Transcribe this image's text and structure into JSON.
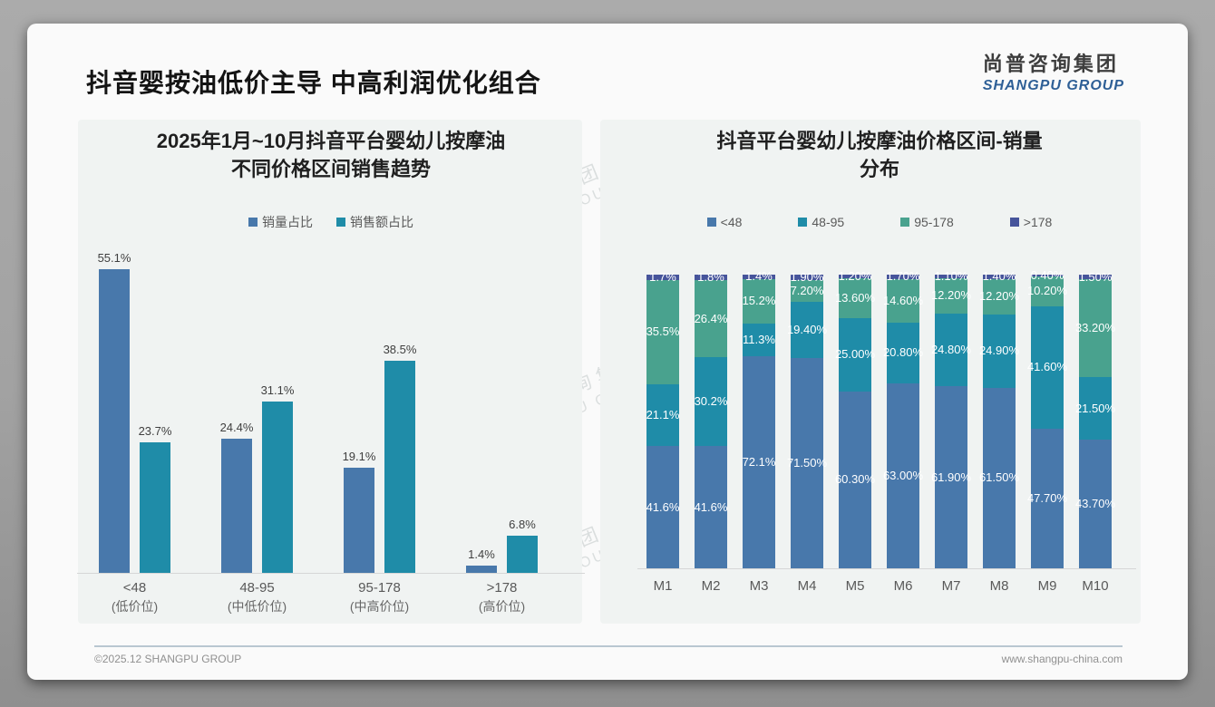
{
  "page": {
    "title": "抖音婴按油低价主导 中高利润优化组合"
  },
  "logo": {
    "cn": "尚普咨询集团",
    "en": "SHANGPU GROUP"
  },
  "watermark": {
    "cn": "尚普咨询集团",
    "en": "SHANGPU GROUP"
  },
  "footer": {
    "left": "©2025.12 SHANGPU GROUP",
    "right": "www.shangpu-china.com"
  },
  "colors": {
    "blue": "#4878ab",
    "teal": "#1f8ca8",
    "green": "#49a28e",
    "navy": "#46549b",
    "axis": "#d6d6d6"
  },
  "chart_data": [
    {
      "type": "bar",
      "stacked": false,
      "title": "2025年1月~10月抖音平台婴幼儿按摩油不同价格区间销售趋势",
      "title_lines": [
        "2025年1月~10月抖音平台婴幼儿按摩油",
        "不同价格区间销售趋势"
      ],
      "xlabel": "",
      "ylabel": "",
      "ylim": [
        0,
        60
      ],
      "grid": false,
      "legend_position": "top",
      "categories": [
        "<48",
        "48-95",
        "95-178",
        ">178"
      ],
      "category_sublabels": [
        "(低价位)",
        "(中低价位)",
        "(中高价位)",
        "(高价位)"
      ],
      "series": [
        {
          "name": "销量占比",
          "color_key": "blue",
          "values": [
            55.1,
            24.4,
            19.1,
            1.4
          ],
          "labels": [
            "55.1%",
            "24.4%",
            "19.1%",
            "1.4%"
          ]
        },
        {
          "name": "销售额占比",
          "color_key": "teal",
          "values": [
            23.7,
            31.1,
            38.5,
            6.8
          ],
          "labels": [
            "23.7%",
            "31.1%",
            "38.5%",
            "6.8%"
          ]
        }
      ]
    },
    {
      "type": "bar",
      "stacked": true,
      "title": "抖音平台婴幼儿按摩油价格区间-销量分布",
      "title_lines": [
        "抖音平台婴幼儿按摩油价格区间-销量",
        "分布"
      ],
      "xlabel": "",
      "ylabel": "",
      "ylim": [
        0,
        100
      ],
      "grid": false,
      "legend_position": "top",
      "categories": [
        "M1",
        "M2",
        "M3",
        "M4",
        "M5",
        "M6",
        "M7",
        "M8",
        "M9",
        "M10"
      ],
      "series": [
        {
          "name": "<48",
          "color_key": "blue",
          "values": [
            41.6,
            41.6,
            72.1,
            71.5,
            60.3,
            63.0,
            61.9,
            61.5,
            47.7,
            43.7
          ],
          "labels": [
            "41.6%",
            "41.6%",
            "72.1%",
            "71.50%",
            "60.30%",
            "63.00%",
            "61.90%",
            "61.50%",
            "47.70%",
            "43.70%"
          ]
        },
        {
          "name": "48-95",
          "color_key": "teal",
          "values": [
            21.1,
            30.2,
            11.3,
            19.4,
            25.0,
            20.8,
            24.8,
            24.9,
            41.6,
            21.5
          ],
          "labels": [
            "21.1%",
            "30.2%",
            "11.3%",
            "19.40%",
            "25.00%",
            "20.80%",
            "24.80%",
            "24.90%",
            "41.60%",
            "21.50%"
          ]
        },
        {
          "name": "95-178",
          "color_key": "green",
          "values": [
            35.5,
            26.4,
            15.2,
            7.2,
            13.6,
            14.6,
            12.2,
            12.2,
            10.2,
            33.2
          ],
          "labels": [
            "35.5%",
            "26.4%",
            "15.2%",
            "7.20%",
            "13.60%",
            "14.60%",
            "12.20%",
            "12.20%",
            "10.20%",
            "33.20%"
          ]
        },
        {
          "name": ">178",
          "color_key": "navy",
          "values": [
            1.7,
            1.8,
            1.4,
            1.9,
            1.2,
            1.7,
            1.1,
            1.4,
            0.4,
            1.5
          ],
          "labels": [
            "1.7%",
            "1.8%",
            "1.4%",
            "1.90%",
            "1.20%",
            "1.70%",
            "1.10%",
            "1.40%",
            "0.40%",
            "1.50%"
          ]
        }
      ]
    }
  ]
}
